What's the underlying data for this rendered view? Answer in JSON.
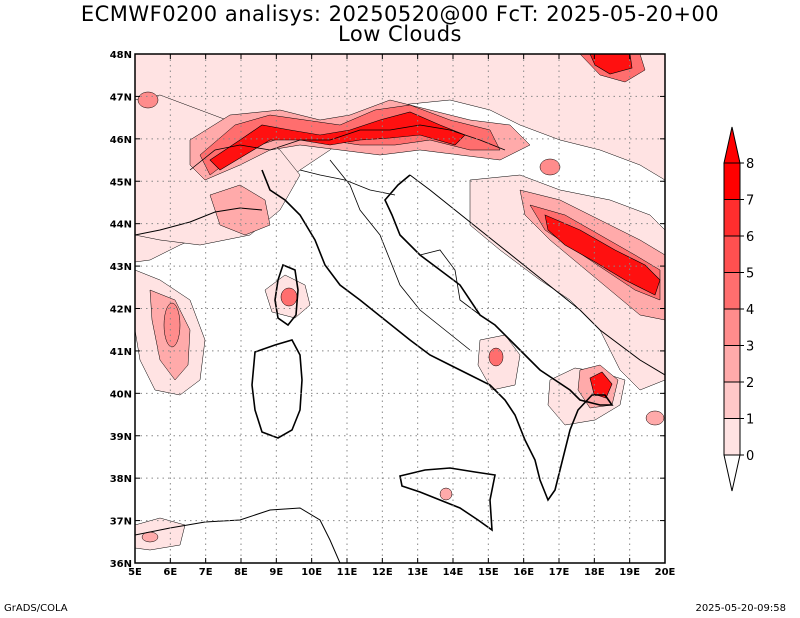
{
  "title_line1": "ECMWF0200 analisys: 20250520@00 FcT: 2025-05-20+00",
  "title_line2": "Low Clouds",
  "footer_left": "GrADS/COLA",
  "footer_right": "2025-05-20-09:58",
  "map": {
    "lon_range": [
      5,
      20
    ],
    "lat_range": [
      36,
      48
    ],
    "lon_ticks": [
      "5E",
      "6E",
      "7E",
      "8E",
      "9E",
      "10E",
      "11E",
      "12E",
      "13E",
      "14E",
      "15E",
      "16E",
      "17E",
      "18E",
      "19E",
      "20E"
    ],
    "lat_ticks": [
      "36N",
      "37N",
      "38N",
      "39N",
      "40N",
      "41N",
      "42N",
      "43N",
      "44N",
      "45N",
      "46N",
      "47N",
      "48N"
    ],
    "grid": "dotted",
    "field": "low cloud cover"
  },
  "colorbar": {
    "labels": [
      "0",
      "1",
      "2",
      "3",
      "4",
      "5",
      "6",
      "7",
      "8"
    ],
    "colors": [
      "#ffffff",
      "#ffe3e3",
      "#ffc8c8",
      "#ffaaaa",
      "#ff8c8c",
      "#ff6e6e",
      "#ff5050",
      "#ff2e2e",
      "#ff0000"
    ]
  }
}
